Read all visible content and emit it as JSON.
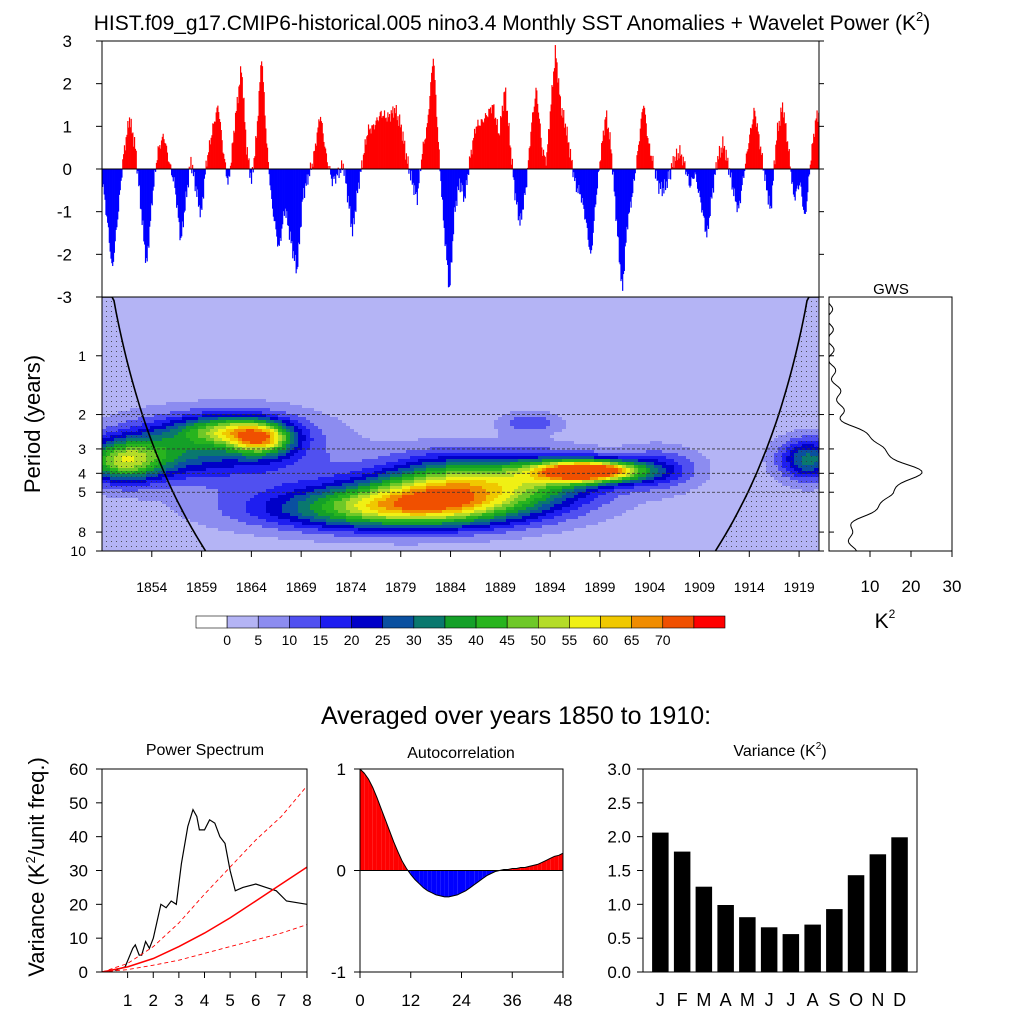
{
  "chart_data": [
    {
      "id": "anomaly",
      "type": "area",
      "title": "HIST.f09_g17.CMIP6-historical.005 nino3.4 Monthly SST Anomalies + Wavelet Power (K",
      "title_superscript": "2",
      "title_close": ")",
      "xlim": [
        1850,
        1921
      ],
      "ylim": [
        -3,
        3
      ],
      "yticks": [
        3,
        2,
        1,
        0,
        -1,
        -2,
        -3
      ],
      "positive_color": "#ff0000",
      "negative_color": "#0000ff",
      "series_keypoints": [
        [
          1850.0,
          -0.2
        ],
        [
          1850.6,
          -1.4
        ],
        [
          1851.0,
          -2.4
        ],
        [
          1851.6,
          -1.0
        ],
        [
          1852.1,
          0.3
        ],
        [
          1852.7,
          1.2
        ],
        [
          1853.3,
          0.5
        ],
        [
          1853.8,
          -0.8
        ],
        [
          1854.4,
          -2.3
        ],
        [
          1855.0,
          -0.6
        ],
        [
          1855.5,
          0.4
        ],
        [
          1856.1,
          0.8
        ],
        [
          1856.6,
          0.2
        ],
        [
          1857.2,
          -0.4
        ],
        [
          1857.8,
          -1.7
        ],
        [
          1858.3,
          -0.7
        ],
        [
          1858.8,
          0.2
        ],
        [
          1859.4,
          -0.6
        ],
        [
          1859.8,
          -1.1
        ],
        [
          1860.3,
          0.1
        ],
        [
          1860.9,
          0.9
        ],
        [
          1861.5,
          1.5
        ],
        [
          1862.0,
          0.4
        ],
        [
          1862.5,
          -0.4
        ],
        [
          1863.2,
          1.2
        ],
        [
          1863.8,
          2.4
        ],
        [
          1864.3,
          0.5
        ],
        [
          1864.8,
          -0.3
        ],
        [
          1865.3,
          0.8
        ],
        [
          1865.8,
          2.7
        ],
        [
          1866.3,
          0.6
        ],
        [
          1866.8,
          -0.8
        ],
        [
          1867.5,
          -1.9
        ],
        [
          1868.1,
          -0.9
        ],
        [
          1868.7,
          -1.7
        ],
        [
          1869.3,
          -2.4
        ],
        [
          1869.9,
          -0.6
        ],
        [
          1870.4,
          -0.2
        ],
        [
          1870.9,
          0.2
        ],
        [
          1871.6,
          1.3
        ],
        [
          1872.2,
          0.3
        ],
        [
          1872.8,
          -0.3
        ],
        [
          1873.4,
          -0.1
        ],
        [
          1873.9,
          0.1
        ],
        [
          1874.3,
          -0.6
        ],
        [
          1874.8,
          -1.5
        ],
        [
          1875.3,
          -0.5
        ],
        [
          1875.8,
          0.2
        ],
        [
          1876.3,
          0.9
        ],
        [
          1876.9,
          1.0
        ],
        [
          1877.6,
          1.3
        ],
        [
          1878.3,
          1.2
        ],
        [
          1879.0,
          1.4
        ],
        [
          1879.6,
          1.0
        ],
        [
          1880.2,
          0.2
        ],
        [
          1880.7,
          -0.3
        ],
        [
          1881.2,
          -0.7
        ],
        [
          1881.7,
          0.4
        ],
        [
          1882.2,
          1.0
        ],
        [
          1882.8,
          2.7
        ],
        [
          1883.3,
          0.6
        ],
        [
          1883.8,
          -1.2
        ],
        [
          1884.4,
          -2.9
        ],
        [
          1884.9,
          -1.0
        ],
        [
          1885.4,
          -0.3
        ],
        [
          1885.9,
          -0.7
        ],
        [
          1886.4,
          0.2
        ],
        [
          1887.0,
          1.0
        ],
        [
          1887.6,
          1.1
        ],
        [
          1888.2,
          1.3
        ],
        [
          1888.7,
          1.5
        ],
        [
          1889.3,
          0.8
        ],
        [
          1889.9,
          1.9
        ],
        [
          1890.4,
          0.6
        ],
        [
          1890.9,
          -0.6
        ],
        [
          1891.4,
          -1.3
        ],
        [
          1892.0,
          -0.4
        ],
        [
          1892.5,
          1.0
        ],
        [
          1893.0,
          1.9
        ],
        [
          1893.6,
          0.4
        ],
        [
          1894.0,
          0.2
        ],
        [
          1894.4,
          1.4
        ],
        [
          1894.9,
          2.8
        ],
        [
          1895.4,
          1.5
        ],
        [
          1895.9,
          1.0
        ],
        [
          1896.4,
          0.3
        ],
        [
          1896.9,
          -0.4
        ],
        [
          1897.4,
          -0.6
        ],
        [
          1897.9,
          -1.2
        ],
        [
          1898.4,
          -2.1
        ],
        [
          1898.9,
          -0.7
        ],
        [
          1899.4,
          0.4
        ],
        [
          1899.9,
          1.3
        ],
        [
          1900.4,
          0.5
        ],
        [
          1900.9,
          -1.1
        ],
        [
          1901.5,
          -2.9
        ],
        [
          1902.0,
          -1.3
        ],
        [
          1902.5,
          -0.6
        ],
        [
          1903.0,
          0.3
        ],
        [
          1903.6,
          1.6
        ],
        [
          1904.1,
          0.6
        ],
        [
          1904.6,
          0.1
        ],
        [
          1905.1,
          -0.4
        ],
        [
          1905.6,
          -0.5
        ],
        [
          1906.1,
          -0.2
        ],
        [
          1906.6,
          0.2
        ],
        [
          1907.2,
          0.4
        ],
        [
          1907.7,
          0.1
        ],
        [
          1908.2,
          -0.4
        ],
        [
          1908.7,
          -0.1
        ],
        [
          1909.3,
          -0.8
        ],
        [
          1909.9,
          -1.6
        ],
        [
          1910.4,
          -0.6
        ],
        [
          1910.9,
          0.2
        ],
        [
          1911.5,
          0.6
        ],
        [
          1912.0,
          0.1
        ],
        [
          1912.5,
          -0.5
        ],
        [
          1913.0,
          -1.0
        ],
        [
          1913.5,
          -0.2
        ],
        [
          1914.0,
          0.6
        ],
        [
          1914.6,
          1.4
        ],
        [
          1915.2,
          0.5
        ],
        [
          1915.7,
          -0.3
        ],
        [
          1916.2,
          -1.0
        ],
        [
          1916.8,
          0.8
        ],
        [
          1917.4,
          1.5
        ],
        [
          1918.0,
          0.4
        ],
        [
          1918.5,
          -0.7
        ],
        [
          1919.1,
          -0.3
        ],
        [
          1919.6,
          -1.2
        ],
        [
          1920.2,
          0.3
        ],
        [
          1920.7,
          1.2
        ],
        [
          1921.0,
          1.3
        ]
      ]
    },
    {
      "id": "wavelet",
      "type": "heatmap",
      "ylabel": "Period (years)",
      "xlim": [
        1849,
        1921
      ],
      "period_range": [
        0.5,
        10
      ],
      "xticks": [
        1854,
        1859,
        1864,
        1869,
        1874,
        1879,
        1884,
        1889,
        1894,
        1899,
        1904,
        1909,
        1914,
        1919
      ],
      "yticks": [
        1,
        2,
        3,
        4,
        5,
        8,
        10
      ],
      "dashed_periods": [
        2,
        3,
        4,
        5
      ],
      "levels": [
        0,
        5,
        10,
        15,
        20,
        25,
        30,
        35,
        40,
        45,
        50,
        55,
        60,
        65,
        70
      ],
      "colors": [
        "#ffffff",
        "#b4b4f5",
        "#8c8cf0",
        "#5050f0",
        "#1e1ef0",
        "#0000c8",
        "#0a50a0",
        "#0a786e",
        "#14a028",
        "#28b41e",
        "#6ec828",
        "#b4dc28",
        "#f0f014",
        "#f0c800",
        "#f08c00",
        "#f05000",
        "#ff0000"
      ],
      "features": [
        {
          "year": 1851,
          "period": 3.5,
          "dx": 4,
          "dy": 0.35,
          "level": 40
        },
        {
          "year": 1855,
          "period": 3.0,
          "dx": 6,
          "dy": 0.45,
          "level": 20
        },
        {
          "year": 1862,
          "period": 2.4,
          "dx": 5,
          "dy": 0.25,
          "level": 35
        },
        {
          "year": 1865,
          "period": 2.7,
          "dx": 3,
          "dy": 0.25,
          "level": 40
        },
        {
          "year": 1863,
          "period": 3.0,
          "dx": 9,
          "dy": 0.6,
          "level": 18
        },
        {
          "year": 1877,
          "period": 6.2,
          "dx": 13,
          "dy": 0.35,
          "level": 30
        },
        {
          "year": 1884,
          "period": 4.3,
          "dx": 7,
          "dy": 0.45,
          "level": 30
        },
        {
          "year": 1882,
          "period": 5.5,
          "dx": 11,
          "dy": 0.4,
          "level": 40
        },
        {
          "year": 1893,
          "period": 4.2,
          "dx": 7,
          "dy": 0.4,
          "level": 30
        },
        {
          "year": 1898,
          "period": 3.9,
          "dx": 5,
          "dy": 0.18,
          "level": 75
        },
        {
          "year": 1892,
          "period": 2.2,
          "dx": 3,
          "dy": 0.18,
          "level": 12
        },
        {
          "year": 1905,
          "period": 3.8,
          "dx": 4,
          "dy": 0.35,
          "level": 15
        },
        {
          "year": 1920,
          "period": 3.4,
          "dx": 3,
          "dy": 0.35,
          "level": 30
        }
      ]
    },
    {
      "id": "gws",
      "type": "line",
      "title": "GWS",
      "xlabel": "K",
      "xlabel_superscript": "2",
      "xlim": [
        0,
        30
      ],
      "xticks": [
        10,
        20,
        30
      ],
      "period_values": [
        1,
        2,
        3,
        4,
        5,
        8,
        10
      ],
      "power_values": [
        0.5,
        3,
        13,
        22,
        15,
        5,
        6
      ]
    },
    {
      "id": "power_spectrum",
      "type": "line",
      "section_title": "Averaged over years 1850 to 1910:",
      "title": "Power Spectrum",
      "ylabel": "Variance (K",
      "ylabel_superscript": "2",
      "ylabel_close": "/unit freq.)",
      "xlim": [
        0,
        8
      ],
      "ylim": [
        0,
        60
      ],
      "xticks": [
        1,
        2,
        3,
        4,
        5,
        6,
        7,
        8
      ],
      "yticks": [
        0,
        10,
        20,
        30,
        40,
        50,
        60
      ],
      "series": [
        {
          "name": "spectrum",
          "color": "#000000",
          "x": [
            0.5,
            0.9,
            1.2,
            1.3,
            1.45,
            1.55,
            1.7,
            1.85,
            2.0,
            2.15,
            2.3,
            2.5,
            2.7,
            2.9,
            3.1,
            3.35,
            3.55,
            3.7,
            3.8,
            4.0,
            4.2,
            4.4,
            4.6,
            4.8,
            5.0,
            5.2,
            5.5,
            6.0,
            6.4,
            6.8,
            7.2,
            8.0
          ],
          "y": [
            0.5,
            1.5,
            7,
            8,
            5,
            5,
            9,
            7,
            10,
            15,
            20,
            19,
            21,
            20,
            32,
            43,
            48,
            46,
            42,
            42,
            45,
            44,
            40,
            38,
            30,
            24,
            25,
            26,
            25,
            24,
            21,
            20
          ]
        },
        {
          "name": "red noise",
          "color": "#ff0000",
          "x": [
            0,
            1,
            2,
            3,
            4,
            5,
            6,
            7,
            8
          ],
          "y": [
            0,
            1.5,
            4,
            7.5,
            11.5,
            16,
            21,
            26,
            31
          ]
        },
        {
          "name": "upper bound",
          "color": "#ff0000",
          "x": [
            0,
            1,
            2,
            3,
            4,
            5,
            6,
            7,
            8
          ],
          "y": [
            0,
            2.5,
            7.5,
            14.5,
            23,
            31,
            39,
            46,
            55
          ]
        },
        {
          "name": "lower bound",
          "color": "#ff0000",
          "x": [
            0,
            1,
            2,
            3,
            4,
            5,
            6,
            7,
            8
          ],
          "y": [
            0,
            0.7,
            2,
            3.5,
            5.5,
            7.5,
            9.5,
            11.5,
            14
          ]
        }
      ]
    },
    {
      "id": "autocorrelation",
      "type": "area",
      "title": "Autocorrelation",
      "xlim": [
        0,
        48
      ],
      "ylim": [
        -1,
        1
      ],
      "xticks": [
        0,
        12,
        24,
        36,
        48
      ],
      "yticks": [
        1,
        0,
        -1
      ],
      "positive_color": "#ff0000",
      "negative_color": "#0000ff",
      "x": [
        0,
        1,
        2,
        3,
        4,
        5,
        6,
        7,
        8,
        9,
        10,
        11,
        12,
        13,
        14,
        15,
        16,
        17,
        18,
        19,
        20,
        21,
        22,
        23,
        24,
        25,
        26,
        27,
        28,
        29,
        30,
        31,
        32,
        33,
        34,
        35,
        36,
        37,
        38,
        39,
        40,
        41,
        42,
        43,
        44,
        45,
        46,
        47,
        48
      ],
      "y": [
        1.0,
        0.96,
        0.9,
        0.82,
        0.72,
        0.61,
        0.5,
        0.39,
        0.28,
        0.18,
        0.09,
        0.02,
        -0.04,
        -0.09,
        -0.13,
        -0.17,
        -0.2,
        -0.22,
        -0.24,
        -0.25,
        -0.26,
        -0.26,
        -0.25,
        -0.24,
        -0.22,
        -0.2,
        -0.17,
        -0.14,
        -0.11,
        -0.08,
        -0.05,
        -0.03,
        -0.01,
        0.0,
        0.01,
        0.01,
        0.02,
        0.02,
        0.03,
        0.03,
        0.04,
        0.05,
        0.06,
        0.08,
        0.1,
        0.12,
        0.14,
        0.15,
        0.17
      ]
    },
    {
      "id": "variance",
      "type": "bar",
      "title": "Variance (K",
      "title_superscript": "2",
      "title_close": ")",
      "ylim": [
        0,
        3
      ],
      "yticks": [
        0.0,
        0.5,
        1.0,
        1.5,
        2.0,
        2.5,
        3.0
      ],
      "categories": [
        "J",
        "F",
        "M",
        "A",
        "M",
        "J",
        "J",
        "A",
        "S",
        "O",
        "N",
        "D"
      ],
      "values": [
        2.06,
        1.78,
        1.26,
        0.99,
        0.81,
        0.66,
        0.56,
        0.7,
        0.93,
        1.43,
        1.74,
        1.99
      ],
      "color": "#000000"
    }
  ]
}
